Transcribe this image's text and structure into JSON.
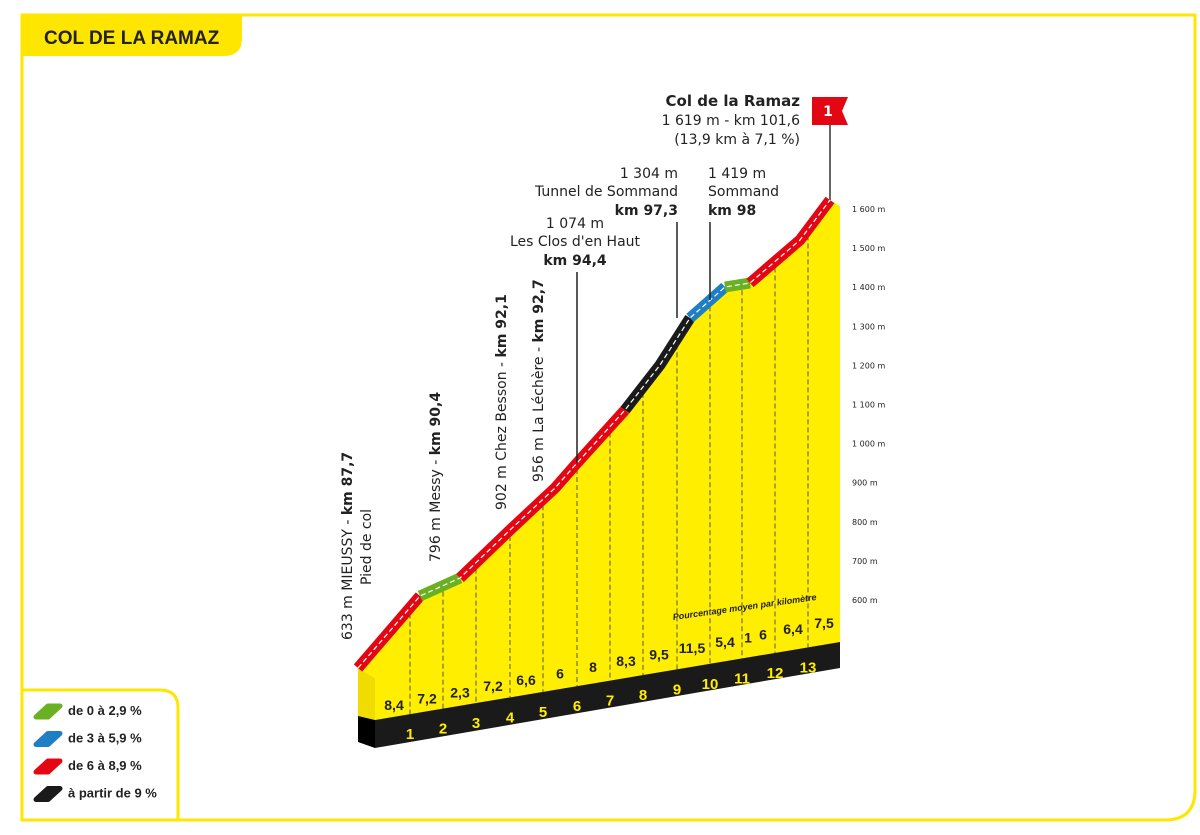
{
  "header": {
    "title": "COL DE LA RAMAZ"
  },
  "summit": {
    "name": "Col de la Ramaz",
    "detail": "1 619 m - km 101,6",
    "average": "(13,9 km à 7,1 %)",
    "category": "1"
  },
  "rotated_labels": [
    {
      "text": "633 m MIEUSSY - ",
      "km": "km 87,7",
      "sub": "Pied de col"
    },
    {
      "text": "796 m  Messy - ",
      "km": "km 90,4"
    },
    {
      "text": "902 m Chez Besson - ",
      "km": "km 92,1"
    },
    {
      "text": "956 m La Léchère - ",
      "km": "km 92,7"
    }
  ],
  "stacked_labels": [
    {
      "altitude": "1 074 m",
      "place": "Les Clos d'en Haut",
      "km": "km 94,4"
    },
    {
      "altitude": "1 304 m",
      "place": "Tunnel de Sommand",
      "km": "km 97,3"
    },
    {
      "altitude": "1 419 m",
      "place": "Sommand",
      "km": "km 98"
    }
  ],
  "elevation_axis": [
    "1 600 m",
    "1 500 m",
    "1 400 m",
    "1 300 m",
    "1 200 m",
    "1 100 m",
    "1 000 m",
    "900 m",
    "800 m",
    "700 m",
    "600 m"
  ],
  "note": "Pourcentage moyen par kilomètre",
  "gradients": [
    "8,4",
    "7,2",
    "2,3",
    "7,2",
    "6,6",
    "6",
    "8",
    "8,3",
    "9,5",
    "11,5",
    "5,4",
    "1",
    "6",
    "6,4",
    "7,5"
  ],
  "km_markers": [
    "1",
    "2",
    "3",
    "4",
    "5",
    "6",
    "7",
    "8",
    "9",
    "10",
    "11",
    "12",
    "13"
  ],
  "legend": [
    "de 0 à 2,9 %",
    "de 3 à 5,9 %",
    "de 6 à 8,9 %",
    "à partir de 9 %"
  ]
}
